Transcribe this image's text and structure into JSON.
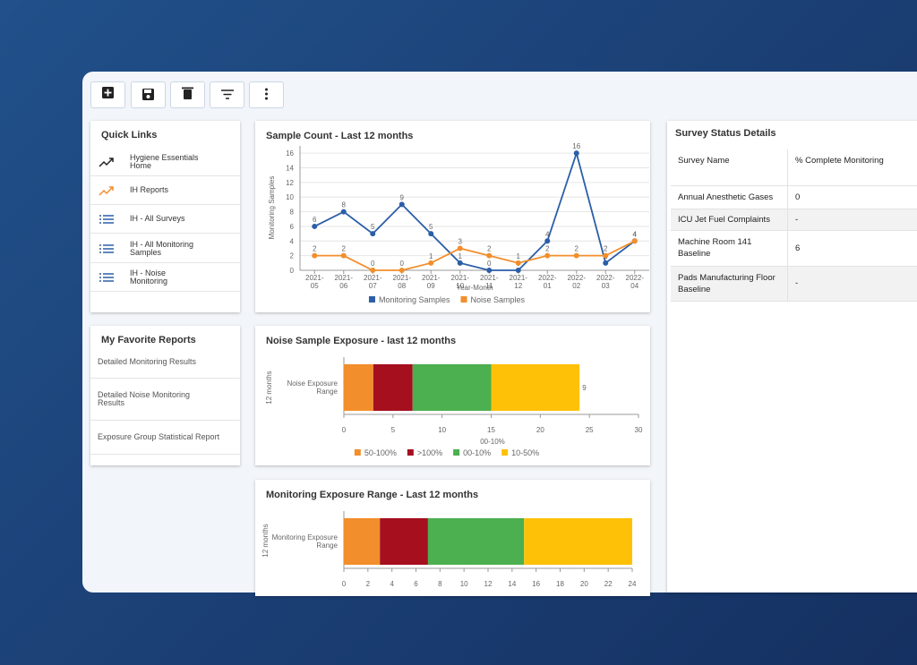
{
  "quick_links": {
    "title": "Quick Links",
    "items": [
      "Hygiene Essentials Home",
      "IH Reports",
      "IH - All Surveys",
      "IH - All Monitoring Samples",
      "IH - Noise Monitoring"
    ]
  },
  "favorite_reports": {
    "title": "My Favorite Reports",
    "items": [
      "Detailed Monitoring Results",
      "Detailed Noise Monitoring Results",
      "Exposure Group Statistical Report"
    ]
  },
  "survey_status": {
    "title": "Survey Status Details",
    "columns": [
      "Survey Name",
      "% Complete Monitoring"
    ],
    "rows": [
      [
        "Annual Anesthetic Gases",
        "0"
      ],
      [
        "ICU Jet Fuel Complaints",
        "-"
      ],
      [
        "Machine Room 141 Baseline",
        "6"
      ],
      [
        "Pads Manufacturing Floor Baseline",
        "-"
      ]
    ]
  },
  "chart_data": [
    {
      "type": "line",
      "title": "Sample Count - Last 12 months",
      "x_label": "Year-Month",
      "y_label": "Monitoring Samples",
      "categories": [
        "2021-05",
        "2021-06",
        "2021-07",
        "2021-08",
        "2021-09",
        "2021-10",
        "2021-11",
        "2021-12",
        "2022-01",
        "2022-02",
        "2022-03",
        "2022-04"
      ],
      "series": [
        {
          "name": "Monitoring Samples",
          "color": "#2b5ea7",
          "values": [
            6,
            8,
            5,
            9,
            5,
            1,
            0,
            0,
            4,
            16,
            1,
            4
          ]
        },
        {
          "name": "Noise Samples",
          "color": "#f28e2b",
          "values": [
            2,
            2,
            0,
            0,
            1,
            3,
            2,
            1,
            2,
            2,
            2,
            4
          ]
        }
      ],
      "ylim": [
        0,
        17
      ],
      "yticks": [
        0,
        2,
        4,
        6,
        8,
        10,
        12,
        14,
        16
      ],
      "grid": true,
      "data_labels": true
    },
    {
      "type": "stacked_hbar",
      "title": "Noise Sample Exposure - last 12 months",
      "y_label": "12 months",
      "x_label": "00-10%",
      "categories": [
        "Noise Exposure Range"
      ],
      "series": [
        {
          "name": "50-100%",
          "color": "#f28e2b",
          "values": [
            3
          ]
        },
        {
          "name": ">100%",
          "color": "#a50f1e",
          "values": [
            4
          ]
        },
        {
          "name": "00-10%",
          "color": "#4caf50",
          "values": [
            8
          ]
        },
        {
          "name": "10-50%",
          "color": "#ffc107",
          "values": [
            9
          ]
        }
      ],
      "xlim": [
        0,
        30
      ],
      "xticks": [
        0,
        5,
        10,
        15,
        20,
        25,
        30
      ],
      "data_labels": true
    },
    {
      "type": "stacked_hbar",
      "title": "Monitoring Exposure Range - Last 12 months",
      "y_label": "12 months",
      "categories": [
        "Monitoring Exposure Range"
      ],
      "series": [
        {
          "color": "#f28e2b",
          "values": [
            3
          ]
        },
        {
          "color": "#a50f1e",
          "values": [
            4
          ]
        },
        {
          "color": "#4caf50",
          "values": [
            8
          ]
        },
        {
          "color": "#ffc107",
          "values": [
            9
          ]
        }
      ],
      "xlim": [
        0,
        24
      ],
      "xticks": [
        0,
        2,
        4,
        6,
        8,
        10,
        12,
        14,
        16,
        18,
        20,
        22,
        24
      ],
      "data_labels": false
    }
  ]
}
